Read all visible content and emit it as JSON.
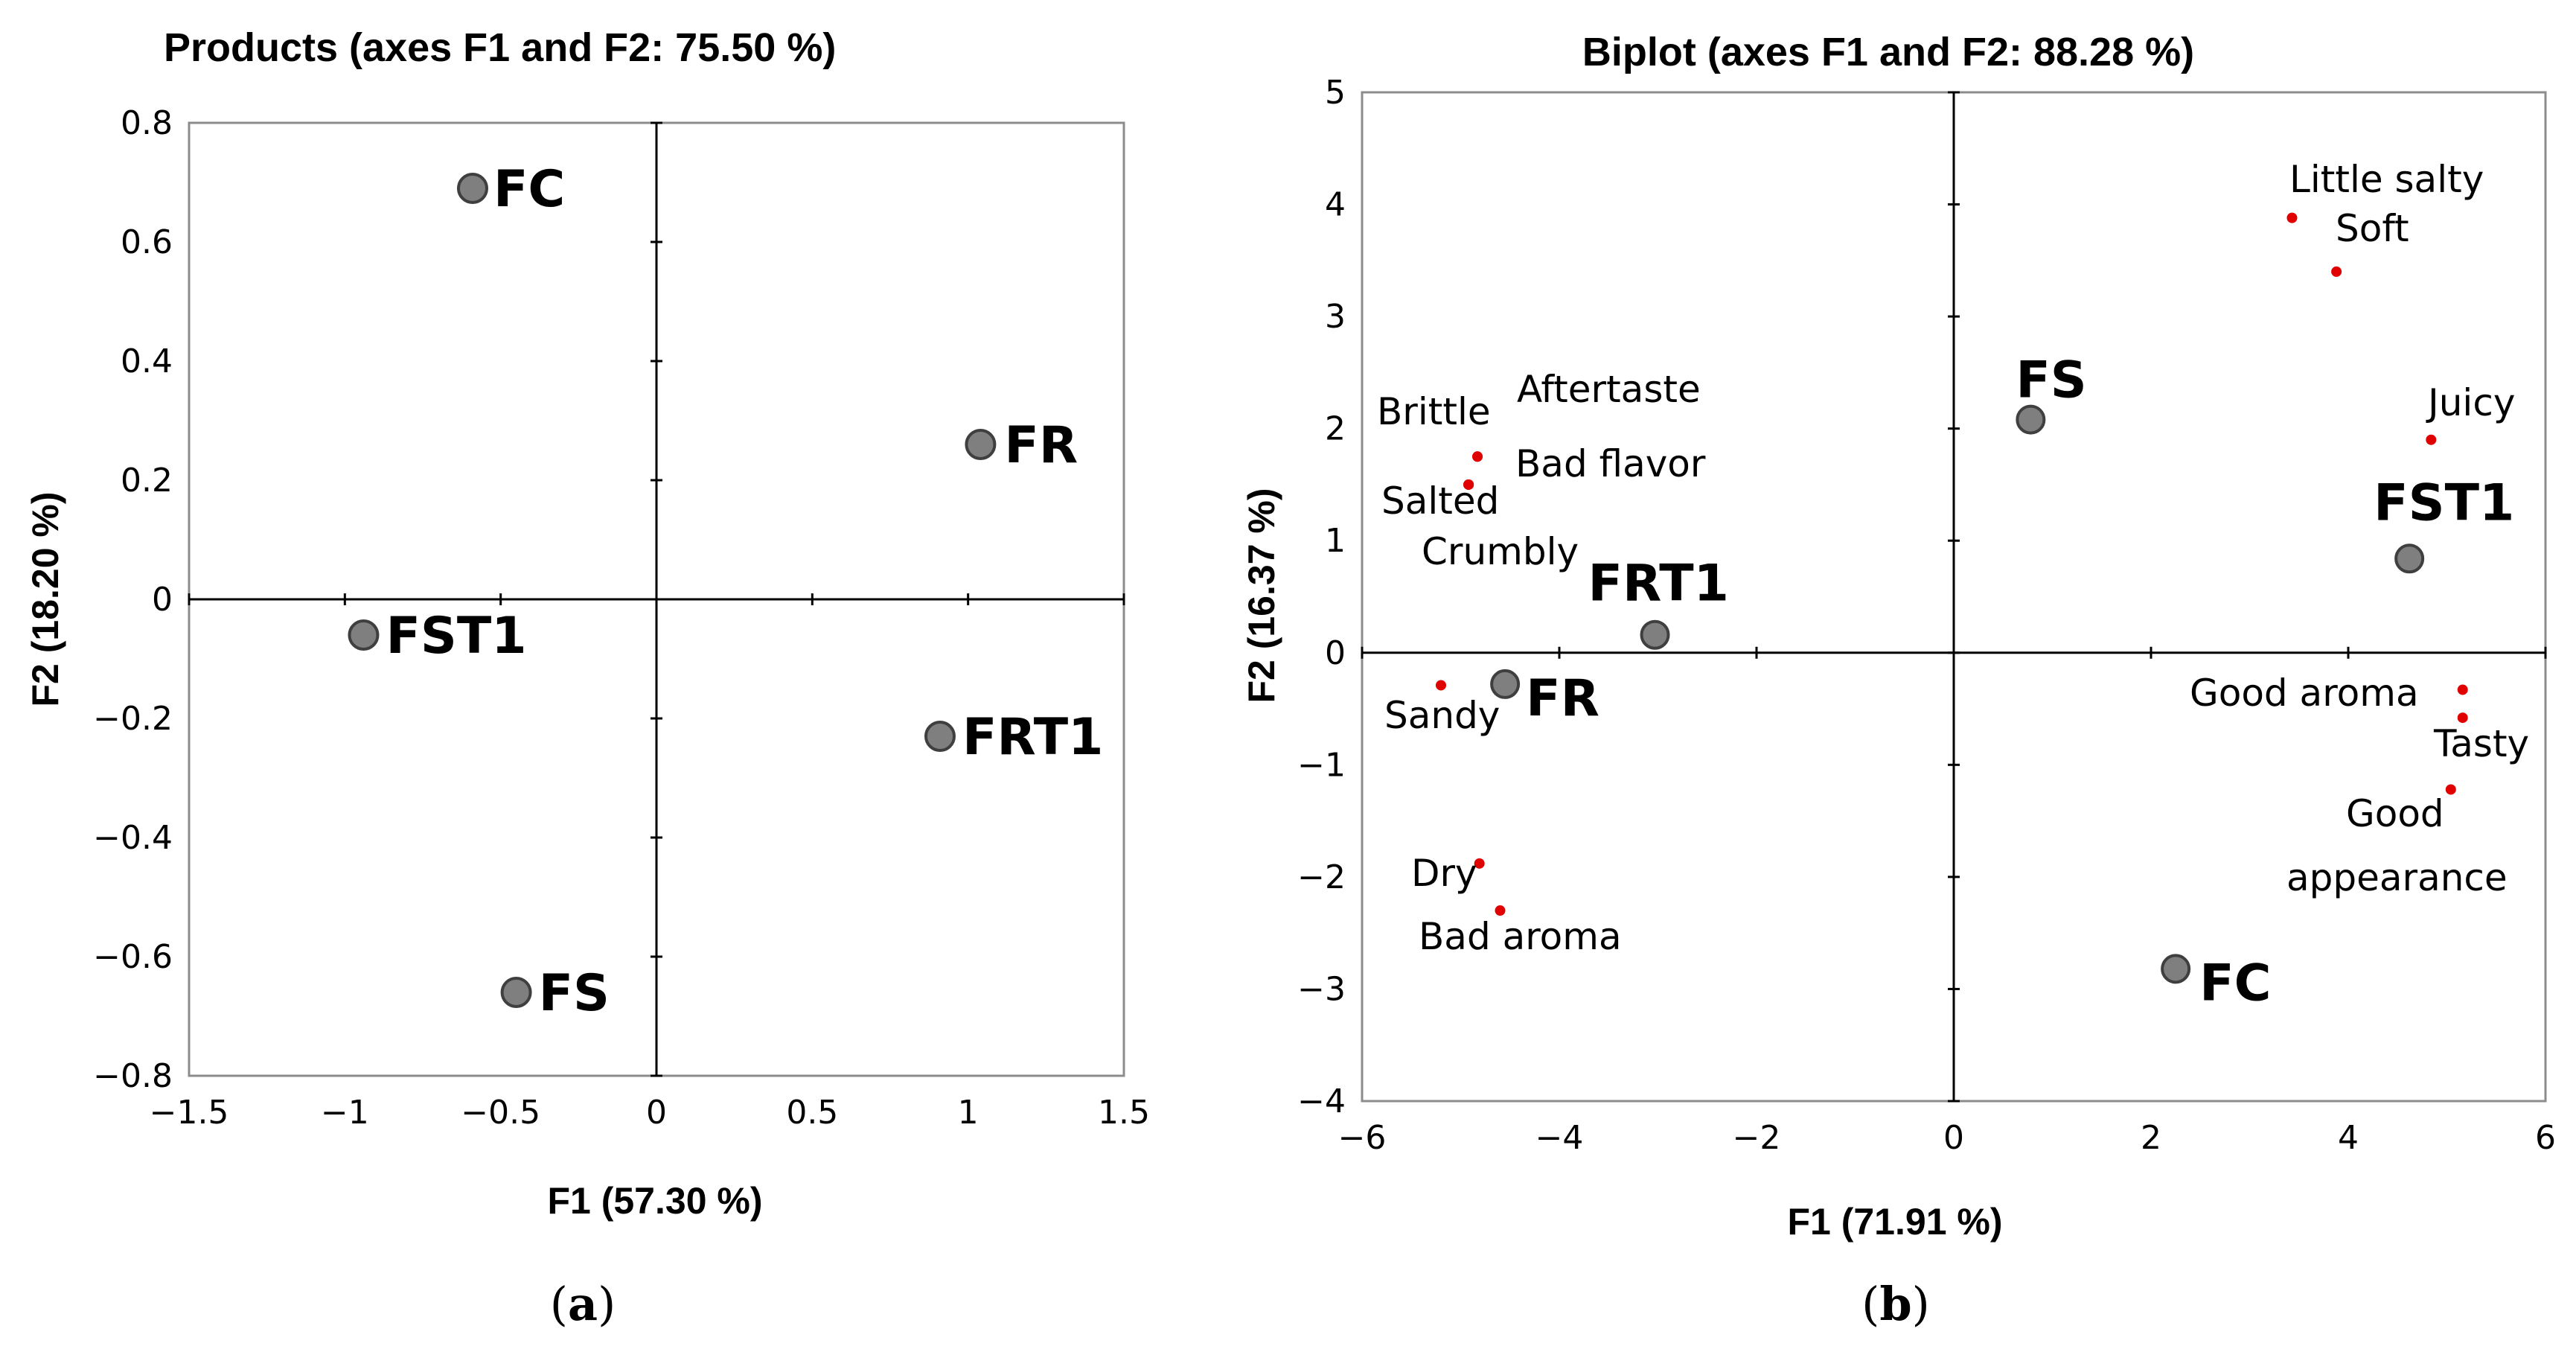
{
  "chart_data": [
    {
      "id": "a",
      "type": "scatter",
      "title": "Products (axes F1 and F2: 75.50 %)",
      "xlabel": "F1 (57.30 %)",
      "ylabel": "F2 (18.20 %)",
      "xlim": [
        -1.5,
        1.5
      ],
      "ylim": [
        -0.8,
        0.8
      ],
      "xticks": [
        -1.5,
        -1,
        -0.5,
        0,
        0.5,
        1,
        1.5
      ],
      "xtick_labels": [
        "−1.5",
        "−1",
        "−0.5",
        "0",
        "0.5",
        "1",
        "1.5"
      ],
      "yticks": [
        -0.8,
        -0.6,
        -0.4,
        -0.2,
        0,
        0.2,
        0.4,
        0.6,
        0.8
      ],
      "ytick_labels": [
        "−0.8",
        "−0.6",
        "−0.4",
        "−0.2",
        "0",
        "0.2",
        "0.4",
        "0.6",
        "0.8"
      ],
      "grid": false,
      "caption_letter": "a",
      "points": [
        {
          "label": "FC",
          "x": -0.59,
          "y": 0.69
        },
        {
          "label": "FR",
          "x": 1.04,
          "y": 0.26
        },
        {
          "label": "FST1",
          "x": -0.94,
          "y": -0.06
        },
        {
          "label": "FRT1",
          "x": 0.91,
          "y": -0.23
        },
        {
          "label": "FS",
          "x": -0.45,
          "y": -0.66
        }
      ]
    },
    {
      "id": "b",
      "type": "scatter",
      "title": "Biplot (axes F1 and F2: 88.28 %)",
      "xlabel": "F1 (71.91 %)",
      "ylabel": "F2 (16.37 %)",
      "xlim": [
        -6,
        6
      ],
      "ylim": [
        -4,
        5
      ],
      "xticks": [
        -6,
        -4,
        -2,
        0,
        2,
        4,
        6
      ],
      "xtick_labels": [
        "−6",
        "−4",
        "−2",
        "0",
        "2",
        "4",
        "6"
      ],
      "yticks": [
        -4,
        -3,
        -2,
        -1,
        0,
        1,
        2,
        3,
        4,
        5
      ],
      "ytick_labels": [
        "−4",
        "−3",
        "−2",
        "−1",
        "0",
        "1",
        "2",
        "3",
        "4",
        "5"
      ],
      "grid": false,
      "caption_letter": "b",
      "points": [
        {
          "label": "FS",
          "x": 0.78,
          "y": 2.08
        },
        {
          "label": "FST1",
          "x": 4.62,
          "y": 0.84
        },
        {
          "label": "FRT1",
          "x": -3.03,
          "y": 0.16
        },
        {
          "label": "FR",
          "x": -4.55,
          "y": -0.28
        },
        {
          "label": "FC",
          "x": 2.25,
          "y": -2.82
        }
      ],
      "variables": [
        {
          "label": "Little salty",
          "x": 3.43,
          "y": 3.88
        },
        {
          "label": "Soft",
          "x": 3.88,
          "y": 3.4
        },
        {
          "label": "Juicy",
          "x": 4.84,
          "y": 1.9
        },
        {
          "label": "Aftertaste",
          "x": -4.83,
          "y": 1.75
        },
        {
          "label": "Brittle",
          "x": -4.83,
          "y": 1.75
        },
        {
          "label": "Bad flavor",
          "x": -4.92,
          "y": 1.5
        },
        {
          "label": "Salted",
          "x": -4.92,
          "y": 1.5
        },
        {
          "label": "Crumbly",
          "x": -4.92,
          "y": 1.5
        },
        {
          "label": "Sandy",
          "x": -5.2,
          "y": -0.29
        },
        {
          "label": "Good aroma",
          "x": 5.16,
          "y": -0.33
        },
        {
          "label": "Tasty",
          "x": 5.16,
          "y": -0.58
        },
        {
          "label": "Good appearance",
          "x": 5.04,
          "y": -1.22
        },
        {
          "label": "Dry",
          "x": -4.81,
          "y": -1.88
        },
        {
          "label": "Bad aroma",
          "x": -4.6,
          "y": -2.3
        }
      ]
    }
  ],
  "colors": {
    "point_fill": "#7f7f7f",
    "point_stroke": "#3f3f3f",
    "variable_dot": "#e00000",
    "axis": "#000000",
    "frame": "#8c8c8c"
  }
}
